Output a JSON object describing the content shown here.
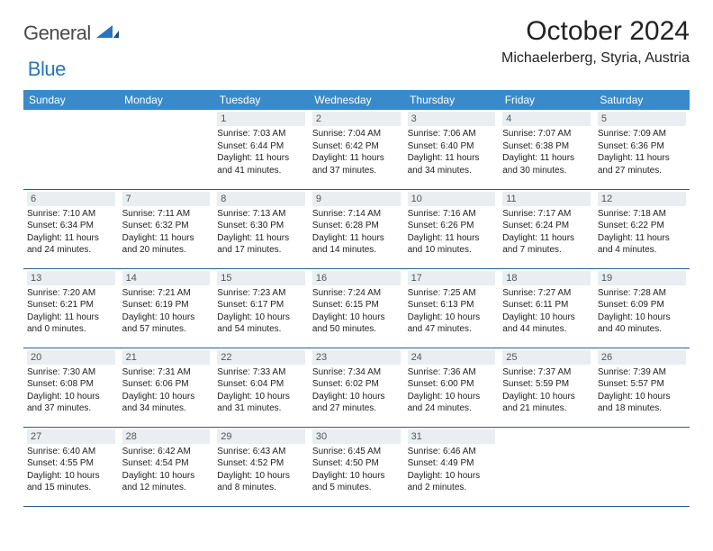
{
  "logo": {
    "text1": "General",
    "text2": "Blue"
  },
  "title": "October 2024",
  "location": "Michaelerberg, Styria, Austria",
  "colors": {
    "header_bg": "#3a8ac9",
    "header_fg": "#ffffff",
    "datebar_bg": "#e9eef2",
    "row_border": "#2e5e8a",
    "logo_gray": "#4a4a4a",
    "logo_blue": "#2976bb"
  },
  "weekdays": [
    "Sunday",
    "Monday",
    "Tuesday",
    "Wednesday",
    "Thursday",
    "Friday",
    "Saturday"
  ],
  "weeks": [
    [
      null,
      null,
      {
        "n": "1",
        "sr": "Sunrise: 7:03 AM",
        "ss": "Sunset: 6:44 PM",
        "d1": "Daylight: 11 hours",
        "d2": "and 41 minutes."
      },
      {
        "n": "2",
        "sr": "Sunrise: 7:04 AM",
        "ss": "Sunset: 6:42 PM",
        "d1": "Daylight: 11 hours",
        "d2": "and 37 minutes."
      },
      {
        "n": "3",
        "sr": "Sunrise: 7:06 AM",
        "ss": "Sunset: 6:40 PM",
        "d1": "Daylight: 11 hours",
        "d2": "and 34 minutes."
      },
      {
        "n": "4",
        "sr": "Sunrise: 7:07 AM",
        "ss": "Sunset: 6:38 PM",
        "d1": "Daylight: 11 hours",
        "d2": "and 30 minutes."
      },
      {
        "n": "5",
        "sr": "Sunrise: 7:09 AM",
        "ss": "Sunset: 6:36 PM",
        "d1": "Daylight: 11 hours",
        "d2": "and 27 minutes."
      }
    ],
    [
      {
        "n": "6",
        "sr": "Sunrise: 7:10 AM",
        "ss": "Sunset: 6:34 PM",
        "d1": "Daylight: 11 hours",
        "d2": "and 24 minutes."
      },
      {
        "n": "7",
        "sr": "Sunrise: 7:11 AM",
        "ss": "Sunset: 6:32 PM",
        "d1": "Daylight: 11 hours",
        "d2": "and 20 minutes."
      },
      {
        "n": "8",
        "sr": "Sunrise: 7:13 AM",
        "ss": "Sunset: 6:30 PM",
        "d1": "Daylight: 11 hours",
        "d2": "and 17 minutes."
      },
      {
        "n": "9",
        "sr": "Sunrise: 7:14 AM",
        "ss": "Sunset: 6:28 PM",
        "d1": "Daylight: 11 hours",
        "d2": "and 14 minutes."
      },
      {
        "n": "10",
        "sr": "Sunrise: 7:16 AM",
        "ss": "Sunset: 6:26 PM",
        "d1": "Daylight: 11 hours",
        "d2": "and 10 minutes."
      },
      {
        "n": "11",
        "sr": "Sunrise: 7:17 AM",
        "ss": "Sunset: 6:24 PM",
        "d1": "Daylight: 11 hours",
        "d2": "and 7 minutes."
      },
      {
        "n": "12",
        "sr": "Sunrise: 7:18 AM",
        "ss": "Sunset: 6:22 PM",
        "d1": "Daylight: 11 hours",
        "d2": "and 4 minutes."
      }
    ],
    [
      {
        "n": "13",
        "sr": "Sunrise: 7:20 AM",
        "ss": "Sunset: 6:21 PM",
        "d1": "Daylight: 11 hours",
        "d2": "and 0 minutes."
      },
      {
        "n": "14",
        "sr": "Sunrise: 7:21 AM",
        "ss": "Sunset: 6:19 PM",
        "d1": "Daylight: 10 hours",
        "d2": "and 57 minutes."
      },
      {
        "n": "15",
        "sr": "Sunrise: 7:23 AM",
        "ss": "Sunset: 6:17 PM",
        "d1": "Daylight: 10 hours",
        "d2": "and 54 minutes."
      },
      {
        "n": "16",
        "sr": "Sunrise: 7:24 AM",
        "ss": "Sunset: 6:15 PM",
        "d1": "Daylight: 10 hours",
        "d2": "and 50 minutes."
      },
      {
        "n": "17",
        "sr": "Sunrise: 7:25 AM",
        "ss": "Sunset: 6:13 PM",
        "d1": "Daylight: 10 hours",
        "d2": "and 47 minutes."
      },
      {
        "n": "18",
        "sr": "Sunrise: 7:27 AM",
        "ss": "Sunset: 6:11 PM",
        "d1": "Daylight: 10 hours",
        "d2": "and 44 minutes."
      },
      {
        "n": "19",
        "sr": "Sunrise: 7:28 AM",
        "ss": "Sunset: 6:09 PM",
        "d1": "Daylight: 10 hours",
        "d2": "and 40 minutes."
      }
    ],
    [
      {
        "n": "20",
        "sr": "Sunrise: 7:30 AM",
        "ss": "Sunset: 6:08 PM",
        "d1": "Daylight: 10 hours",
        "d2": "and 37 minutes."
      },
      {
        "n": "21",
        "sr": "Sunrise: 7:31 AM",
        "ss": "Sunset: 6:06 PM",
        "d1": "Daylight: 10 hours",
        "d2": "and 34 minutes."
      },
      {
        "n": "22",
        "sr": "Sunrise: 7:33 AM",
        "ss": "Sunset: 6:04 PM",
        "d1": "Daylight: 10 hours",
        "d2": "and 31 minutes."
      },
      {
        "n": "23",
        "sr": "Sunrise: 7:34 AM",
        "ss": "Sunset: 6:02 PM",
        "d1": "Daylight: 10 hours",
        "d2": "and 27 minutes."
      },
      {
        "n": "24",
        "sr": "Sunrise: 7:36 AM",
        "ss": "Sunset: 6:00 PM",
        "d1": "Daylight: 10 hours",
        "d2": "and 24 minutes."
      },
      {
        "n": "25",
        "sr": "Sunrise: 7:37 AM",
        "ss": "Sunset: 5:59 PM",
        "d1": "Daylight: 10 hours",
        "d2": "and 21 minutes."
      },
      {
        "n": "26",
        "sr": "Sunrise: 7:39 AM",
        "ss": "Sunset: 5:57 PM",
        "d1": "Daylight: 10 hours",
        "d2": "and 18 minutes."
      }
    ],
    [
      {
        "n": "27",
        "sr": "Sunrise: 6:40 AM",
        "ss": "Sunset: 4:55 PM",
        "d1": "Daylight: 10 hours",
        "d2": "and 15 minutes."
      },
      {
        "n": "28",
        "sr": "Sunrise: 6:42 AM",
        "ss": "Sunset: 4:54 PM",
        "d1": "Daylight: 10 hours",
        "d2": "and 12 minutes."
      },
      {
        "n": "29",
        "sr": "Sunrise: 6:43 AM",
        "ss": "Sunset: 4:52 PM",
        "d1": "Daylight: 10 hours",
        "d2": "and 8 minutes."
      },
      {
        "n": "30",
        "sr": "Sunrise: 6:45 AM",
        "ss": "Sunset: 4:50 PM",
        "d1": "Daylight: 10 hours",
        "d2": "and 5 minutes."
      },
      {
        "n": "31",
        "sr": "Sunrise: 6:46 AM",
        "ss": "Sunset: 4:49 PM",
        "d1": "Daylight: 10 hours",
        "d2": "and 2 minutes."
      },
      null,
      null
    ]
  ]
}
